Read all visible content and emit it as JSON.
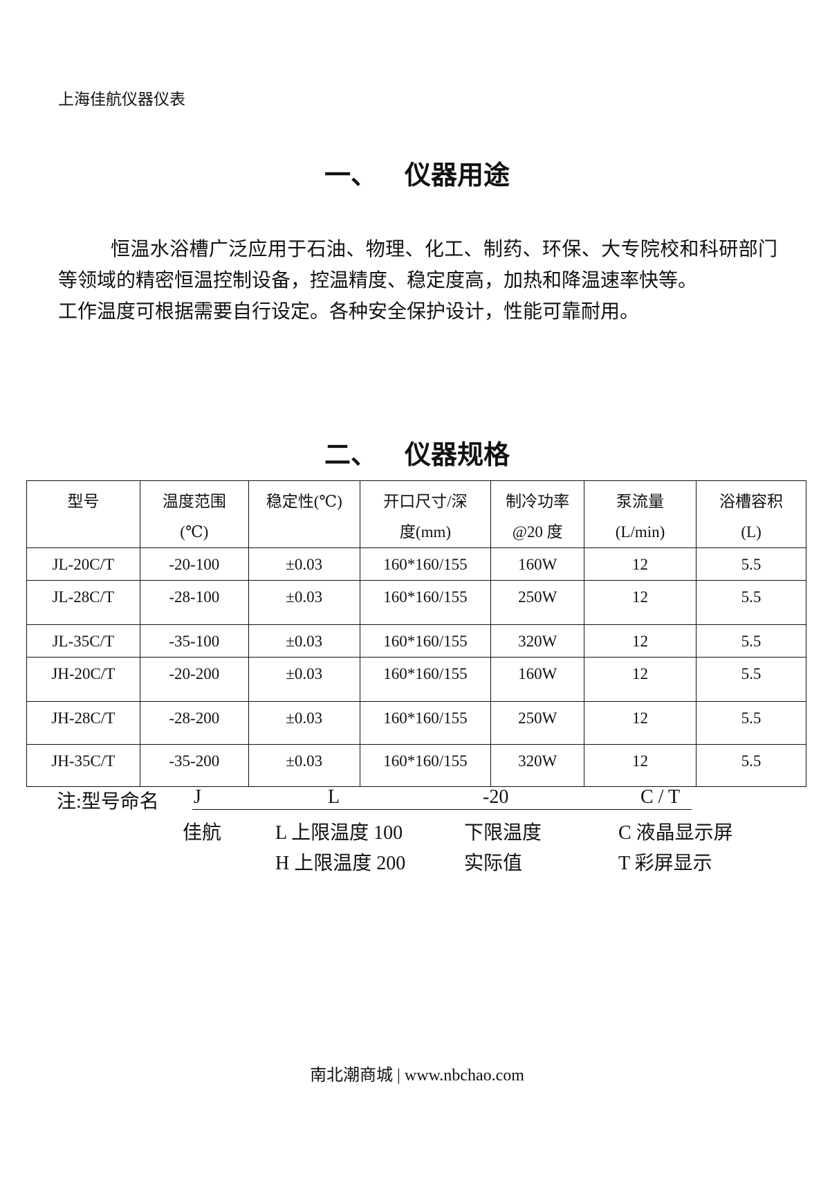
{
  "header": {
    "company": "上海佳航仪器仪表"
  },
  "section1": {
    "number": "一、",
    "title": "仪器用途",
    "paragraph": [
      "恒温水浴槽广泛应用于石油、物理、化工、制药、环保、大专院校和科研部门等领域的精密恒温控制设备，控温精度、稳定度高，加热和降温速率快等。",
      "工作温度可根据需要自行设定。各种安全保护设计，性能可靠耐用。"
    ]
  },
  "section2": {
    "number": "二、",
    "title": "仪器规格"
  },
  "table": {
    "headers": [
      [
        "型号",
        ""
      ],
      [
        "温度范围",
        "(℃)"
      ],
      [
        "稳定性(℃)",
        ""
      ],
      [
        "开口尺寸/深",
        "度(mm)"
      ],
      [
        "制冷功率",
        "@20 度"
      ],
      [
        "泵流量",
        "(L/min)"
      ],
      [
        "浴槽容积",
        "(L)"
      ]
    ],
    "rows": [
      [
        "JL-20C/T",
        "-20-100",
        "±0.03",
        "160*160/155",
        "160W",
        "12",
        "5.5"
      ],
      [
        "JL-28C/T",
        "-28-100",
        "±0.03",
        "160*160/155",
        "250W",
        "12",
        "5.5"
      ],
      [
        "JL-35C/T",
        "-35-100",
        "±0.03",
        "160*160/155",
        "320W",
        "12",
        "5.5"
      ],
      [
        "JH-20C/T",
        "-20-200",
        "±0.03",
        "160*160/155",
        "160W",
        "12",
        "5.5"
      ],
      [
        "JH-28C/T",
        "-28-200",
        "±0.03",
        "160*160/155",
        "250W",
        "12",
        "5.5"
      ],
      [
        "JH-35C/T",
        "-35-200",
        "±0.03",
        "160*160/155",
        "320W",
        "12",
        "5.5"
      ]
    ]
  },
  "note": {
    "label": "注:型号命名",
    "codes": [
      "J",
      "L",
      "-20",
      "C / T"
    ],
    "line2": [
      "佳航",
      "L 上限温度 100",
      "下限温度",
      "C  液晶显示屏"
    ],
    "line3": [
      "H 上限温度 200",
      "实际值",
      "T  彩屏显示"
    ]
  },
  "footer": {
    "text": "南北潮商城 | www.nbchao.com"
  }
}
